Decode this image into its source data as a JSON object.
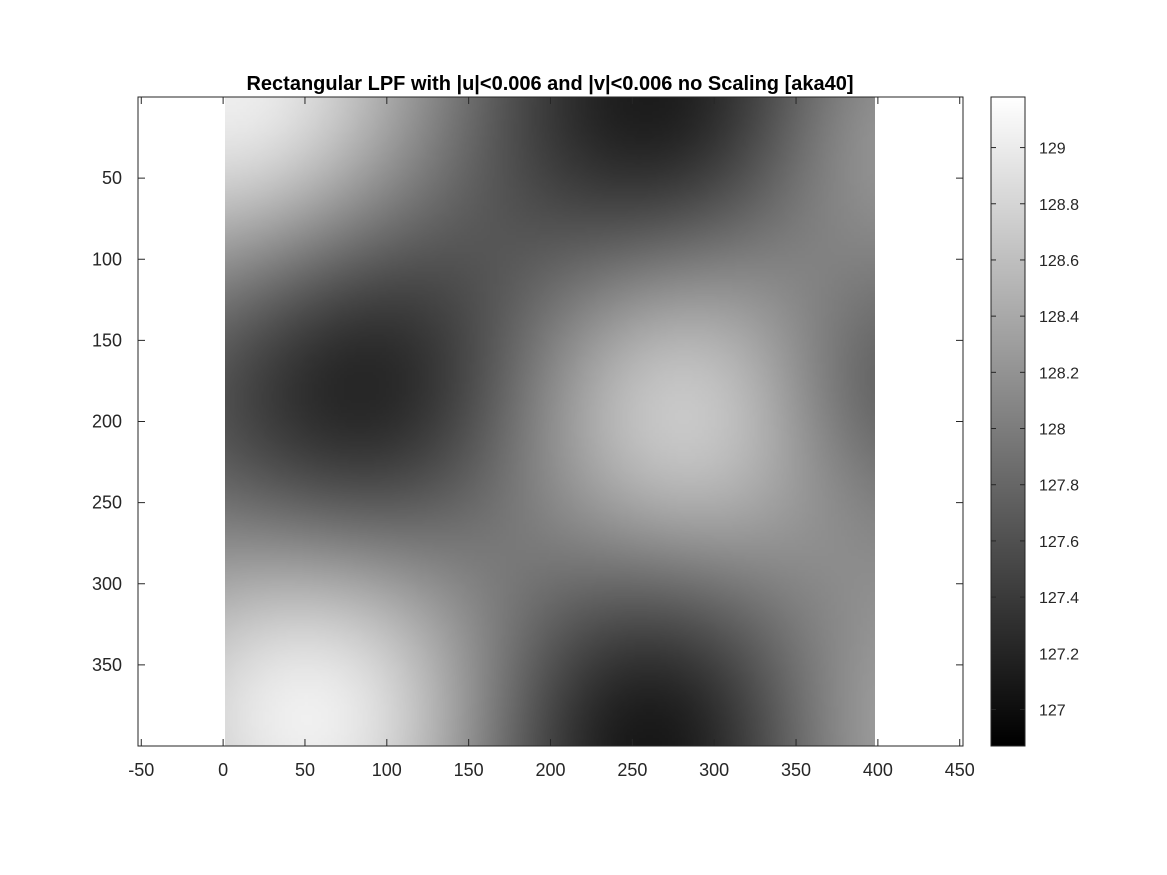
{
  "chart_data": {
    "type": "heatmap",
    "title": "Rectangular LPF with |u|<0.006 and |v|<0.006 no Scaling [aka40]",
    "xlabel": "",
    "ylabel": "",
    "colormap": "gray",
    "image_extent": {
      "x": [
        0,
        400
      ],
      "y": [
        0,
        400
      ]
    },
    "xlim": [
      -52,
      452
    ],
    "ylim": [
      0,
      400
    ],
    "y_reversed": true,
    "x_ticks": [
      -50,
      0,
      50,
      100,
      150,
      200,
      250,
      300,
      350,
      400,
      450
    ],
    "x_tick_labels": [
      "-50",
      "0",
      "50",
      "100",
      "150",
      "200",
      "250",
      "300",
      "350",
      "400",
      "450"
    ],
    "y_ticks": [
      50,
      100,
      150,
      200,
      250,
      300,
      350
    ],
    "y_tick_labels": [
      "50",
      "100",
      "150",
      "200",
      "250",
      "300",
      "350"
    ],
    "colorbar": {
      "range": [
        126.87,
        129.18
      ],
      "ticks": [
        127,
        127.2,
        127.4,
        127.6,
        127.8,
        128,
        128.2,
        128.4,
        128.6,
        128.8,
        129
      ],
      "tick_labels": [
        "127",
        "127.2",
        "127.4",
        "127.6",
        "127.8",
        "128",
        "128.2",
        "128.4",
        "128.6",
        "128.8",
        "129"
      ]
    },
    "field_model": {
      "description_of_pattern_source": "smooth low-pass field; bright/dark lobes read from the image",
      "base": 128.0,
      "lobes": [
        {
          "x": 10,
          "y": 5,
          "amp": 1.1,
          "sigma": 85
        },
        {
          "x": 60,
          "y": 375,
          "amp": 1.15,
          "sigma": 85
        },
        {
          "x": 85,
          "y": 180,
          "amp": -1.0,
          "sigma": 85
        },
        {
          "x": 270,
          "y": 10,
          "amp": -1.0,
          "sigma": 85
        },
        {
          "x": 265,
          "y": 395,
          "amp": -1.1,
          "sigma": 85
        },
        {
          "x": 280,
          "y": 190,
          "amp": 0.95,
          "sigma": 85
        },
        {
          "x": 400,
          "y": 395,
          "amp": 0.55,
          "sigma": 70
        },
        {
          "x": 400,
          "y": 180,
          "amp": -0.5,
          "sigma": 55
        },
        {
          "x": 395,
          "y": 20,
          "amp": 0.45,
          "sigma": 60
        }
      ]
    }
  }
}
